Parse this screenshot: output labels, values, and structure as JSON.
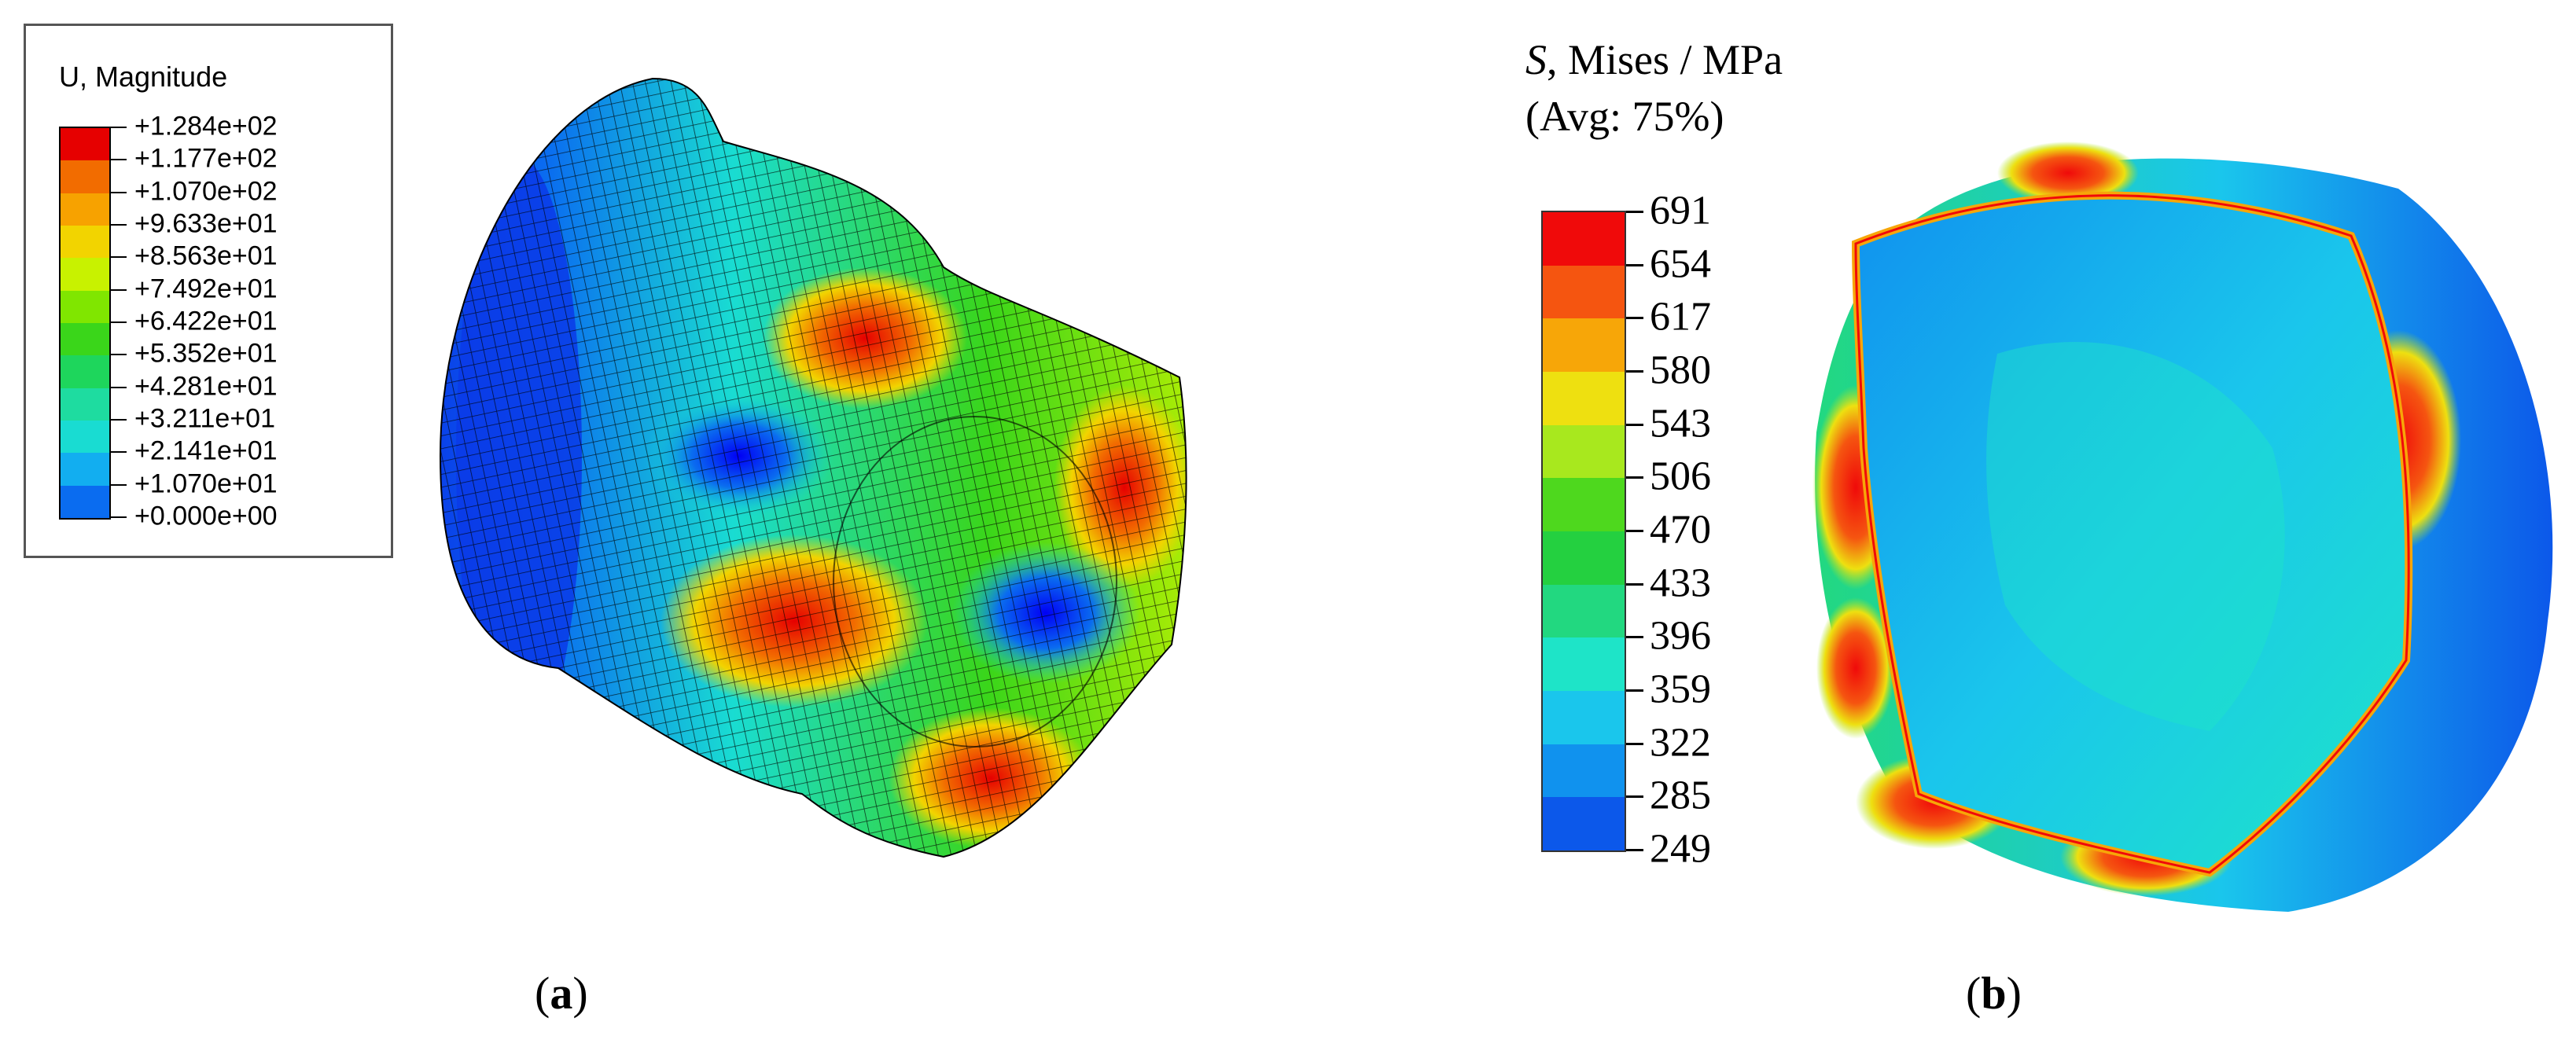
{
  "panel_a": {
    "legend_title": "U, Magnitude",
    "legend_labels": [
      "+1.284e+02",
      "+1.177e+02",
      "+1.070e+02",
      "+9.633e+01",
      "+8.563e+01",
      "+7.492e+01",
      "+6.422e+01",
      "+5.352e+01",
      "+4.281e+01",
      "+3.211e+01",
      "+2.141e+01",
      "+1.070e+01",
      "+0.000e+00"
    ],
    "legend_colors": [
      "#e60000",
      "#f26c00",
      "#f7a200",
      "#f2d400",
      "#c8f200",
      "#80e600",
      "#3ad61a",
      "#1ed65c",
      "#1edca0",
      "#19dcd2",
      "#12aef0",
      "#0a6cf0",
      "#0000f5"
    ],
    "caption_open": "(",
    "caption_letter": "a",
    "caption_close": ")"
  },
  "panel_b": {
    "legend_title_symbol": "S",
    "legend_title_rest": ", Mises / MPa",
    "legend_subtitle": "(Avg: 75%)",
    "legend_labels": [
      "691",
      "654",
      "617",
      "580",
      "543",
      "506",
      "470",
      "433",
      "396",
      "359",
      "322",
      "285",
      "249"
    ],
    "legend_colors": [
      "#f00a0a",
      "#f55510",
      "#f7a608",
      "#eee010",
      "#a8e81e",
      "#4ed81e",
      "#24d040",
      "#22d880",
      "#1ee4c8",
      "#1ac6ec",
      "#1092ee",
      "#0c58ea",
      "#0a1ef2"
    ],
    "caption_open": "(",
    "caption_letter": "b",
    "caption_close": ")"
  }
}
